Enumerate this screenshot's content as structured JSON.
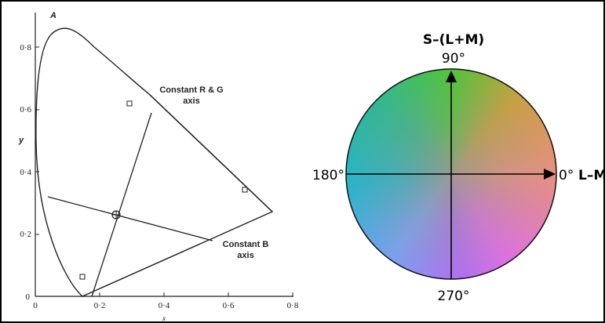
{
  "left_panel": {
    "panel_letter": "A",
    "y_axis_label": "y",
    "x_axis_label": "x",
    "x_ticks": [
      "0",
      "0·2",
      "0·4",
      "0·6",
      "0·8"
    ],
    "y_ticks": [
      "0",
      "0·2",
      "0·4",
      "0·6",
      "0·8"
    ],
    "annotation_rg": [
      "Constant R & G",
      "axis"
    ],
    "annotation_b": [
      "Constant B",
      "axis"
    ]
  },
  "right_panel": {
    "top_label": "S–(L+M)",
    "angle_90": "90°",
    "angle_180": "180°",
    "angle_0": "0°",
    "right_axis_label": "L–M",
    "angle_270": "270°"
  },
  "colors": {
    "wheel_top": "#4fc43a",
    "wheel_right": "#e89080",
    "wheel_bottom": "#7aa0f0",
    "wheel_left": "#28b4c8",
    "wheel_bottom_right": "#e070e0"
  }
}
